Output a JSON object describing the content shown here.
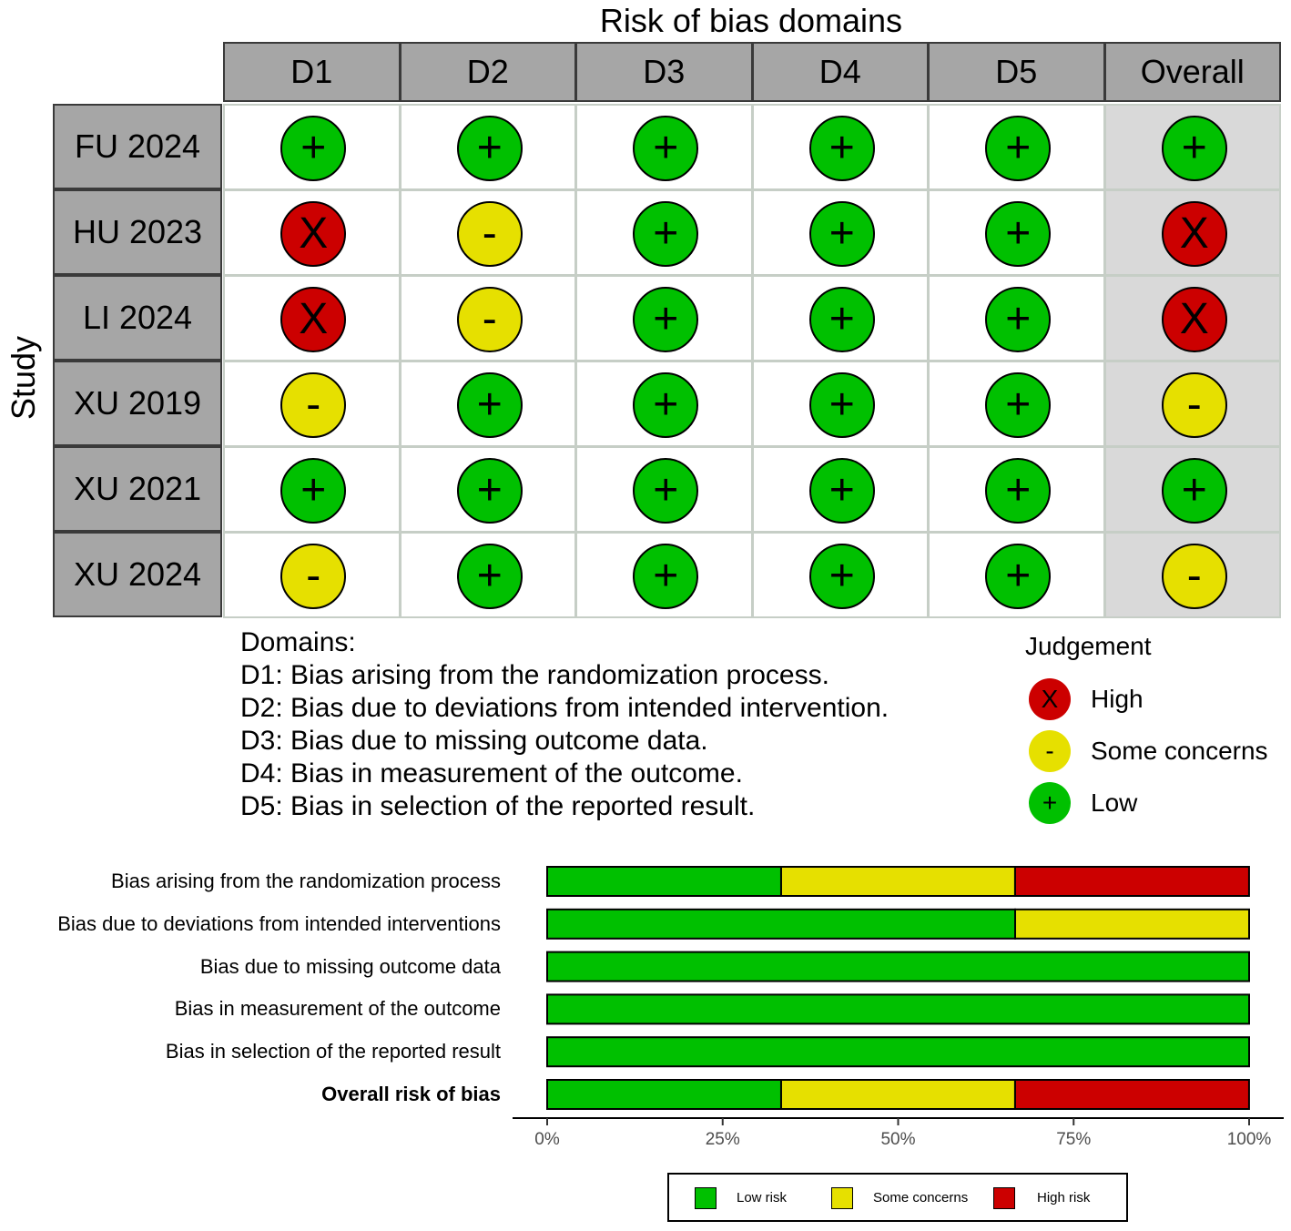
{
  "chart_data": [
    {
      "type": "table",
      "title": "Risk of bias domains",
      "ylabel": "Study",
      "columns": [
        "D1",
        "D2",
        "D3",
        "D4",
        "D5",
        "Overall"
      ],
      "studies": [
        "FU 2024",
        "HU 2023",
        "LI 2024",
        "XU 2019",
        "XU 2021",
        "XU 2024"
      ],
      "judgements": [
        [
          "+",
          "+",
          "+",
          "+",
          "+",
          "+"
        ],
        [
          "X",
          "-",
          "+",
          "+",
          "+",
          "X"
        ],
        [
          "X",
          "-",
          "+",
          "+",
          "+",
          "X"
        ],
        [
          "-",
          "+",
          "+",
          "+",
          "+",
          "-"
        ],
        [
          "+",
          "+",
          "+",
          "+",
          "+",
          "+"
        ],
        [
          "-",
          "+",
          "+",
          "+",
          "+",
          "-"
        ]
      ],
      "domains_heading": "Domains:",
      "domains": [
        "D1: Bias arising from the randomization process.",
        "D2: Bias due to deviations from intended intervention.",
        "D3: Bias due to missing outcome data.",
        "D4: Bias in measurement of the outcome.",
        "D5: Bias in selection of the reported result."
      ],
      "legend": {
        "title": "Judgement",
        "items": [
          {
            "symbol": "X",
            "label": "High",
            "color": "#cc0000"
          },
          {
            "symbol": "-",
            "label": "Some concerns",
            "color": "#e6e000"
          },
          {
            "symbol": "+",
            "label": "Low",
            "color": "#00c000"
          }
        ]
      }
    },
    {
      "type": "bar",
      "orientation": "horizontal",
      "stacked": true,
      "categories": [
        "Bias arising from the randomization process",
        "Bias due to deviations from intended interventions",
        "Bias due to missing outcome data",
        "Bias in measurement of the outcome",
        "Bias in selection of the reported result",
        "Overall risk of bias"
      ],
      "series": [
        {
          "name": "Low risk",
          "color": "#00c000",
          "values": [
            33.33,
            66.67,
            100,
            100,
            100,
            33.33
          ]
        },
        {
          "name": "Some concerns",
          "color": "#e6e000",
          "values": [
            33.33,
            33.33,
            0,
            0,
            0,
            33.33
          ]
        },
        {
          "name": "High risk",
          "color": "#cc0000",
          "values": [
            33.33,
            0,
            0,
            0,
            0,
            33.33
          ]
        }
      ],
      "xlim": [
        0,
        100
      ],
      "xticks": [
        "0%",
        "25%",
        "50%",
        "75%",
        "100%"
      ],
      "legend_position": "bottom"
    }
  ]
}
